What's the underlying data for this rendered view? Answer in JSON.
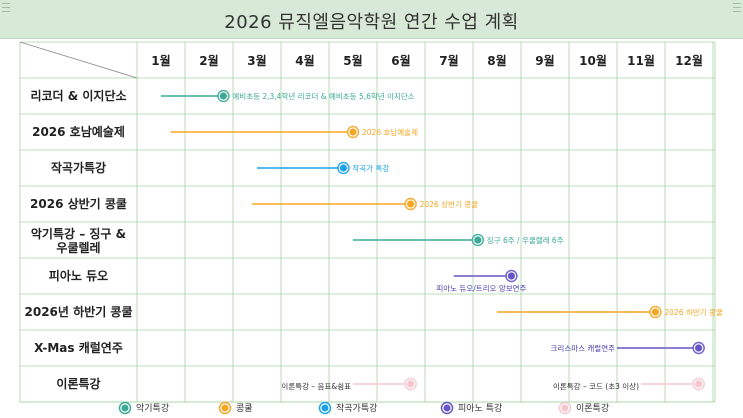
{
  "title": "2026 뮤직엘음악학원 연간 수업 계획",
  "chart_data": {
    "type": "gantt",
    "months": [
      "1월",
      "2월",
      "3월",
      "4월",
      "5월",
      "6월",
      "7월",
      "8월",
      "9월",
      "10월",
      "11월",
      "12월"
    ],
    "categories": [
      "리코더 & 이지단소",
      "2026 호남예술제",
      "작곡가특강",
      "2026 상반기 콩쿨",
      "악기특강 – 징구 & 우쿨렐레",
      "피아노 듀오",
      "2026년 하반기 콩쿨",
      "X-Mas 캐럴연주",
      "이론특강"
    ],
    "series": [
      {
        "name": "악기특강",
        "color": "#3aaa96"
      },
      {
        "name": "콩쿨",
        "color": "#f5a623"
      },
      {
        "name": "작곡가특강",
        "color": "#1aa3e8"
      },
      {
        "name": "피아노 특강",
        "color": "#6655c8"
      },
      {
        "name": "이론특강",
        "color": "#f6c6cf"
      }
    ],
    "tasks": [
      {
        "row": 0,
        "series": 0,
        "start": 1.0,
        "end": 2.3,
        "label": "예비초등 2,3,4학년 리코더 & 예비초등 5,6학년 이지단소",
        "label_side": "right"
      },
      {
        "row": 1,
        "series": 1,
        "start": 1.2,
        "end": 5.0,
        "label": "2026 호남예술제",
        "label_side": "right"
      },
      {
        "row": 2,
        "series": 2,
        "start": 3.0,
        "end": 4.8,
        "label": "작곡가 특강",
        "label_side": "right"
      },
      {
        "row": 3,
        "series": 1,
        "start": 2.9,
        "end": 6.2,
        "label": "2026 상반기 콩쿨",
        "label_side": "right"
      },
      {
        "row": 4,
        "series": 0,
        "start": 5.0,
        "end": 7.6,
        "label": "징구 6주 / 우쿨렐레 6주",
        "label_side": "right"
      },
      {
        "row": 5,
        "series": 3,
        "start": 7.1,
        "end": 8.3,
        "label": "피아노 듀오/트리오 앙보연주",
        "label_side": "below"
      },
      {
        "row": 6,
        "series": 1,
        "start": 8.0,
        "end": 11.3,
        "label": "2026 하반기 콩쿨",
        "label_side": "right"
      },
      {
        "row": 7,
        "series": 3,
        "start": 10.5,
        "end": 12.2,
        "label": "크리스마스 캐럴연주",
        "label_side": "left"
      },
      {
        "row": 8,
        "series": 4,
        "start": 5.0,
        "end": 6.2,
        "label": "이론특강 – 음표&쉼표",
        "label_side": "left"
      },
      {
        "row": 8,
        "series": 4,
        "start": 11.0,
        "end": 12.2,
        "label": "이론특강 – 코드 (초3 이상)",
        "label_side": "left"
      }
    ]
  }
}
